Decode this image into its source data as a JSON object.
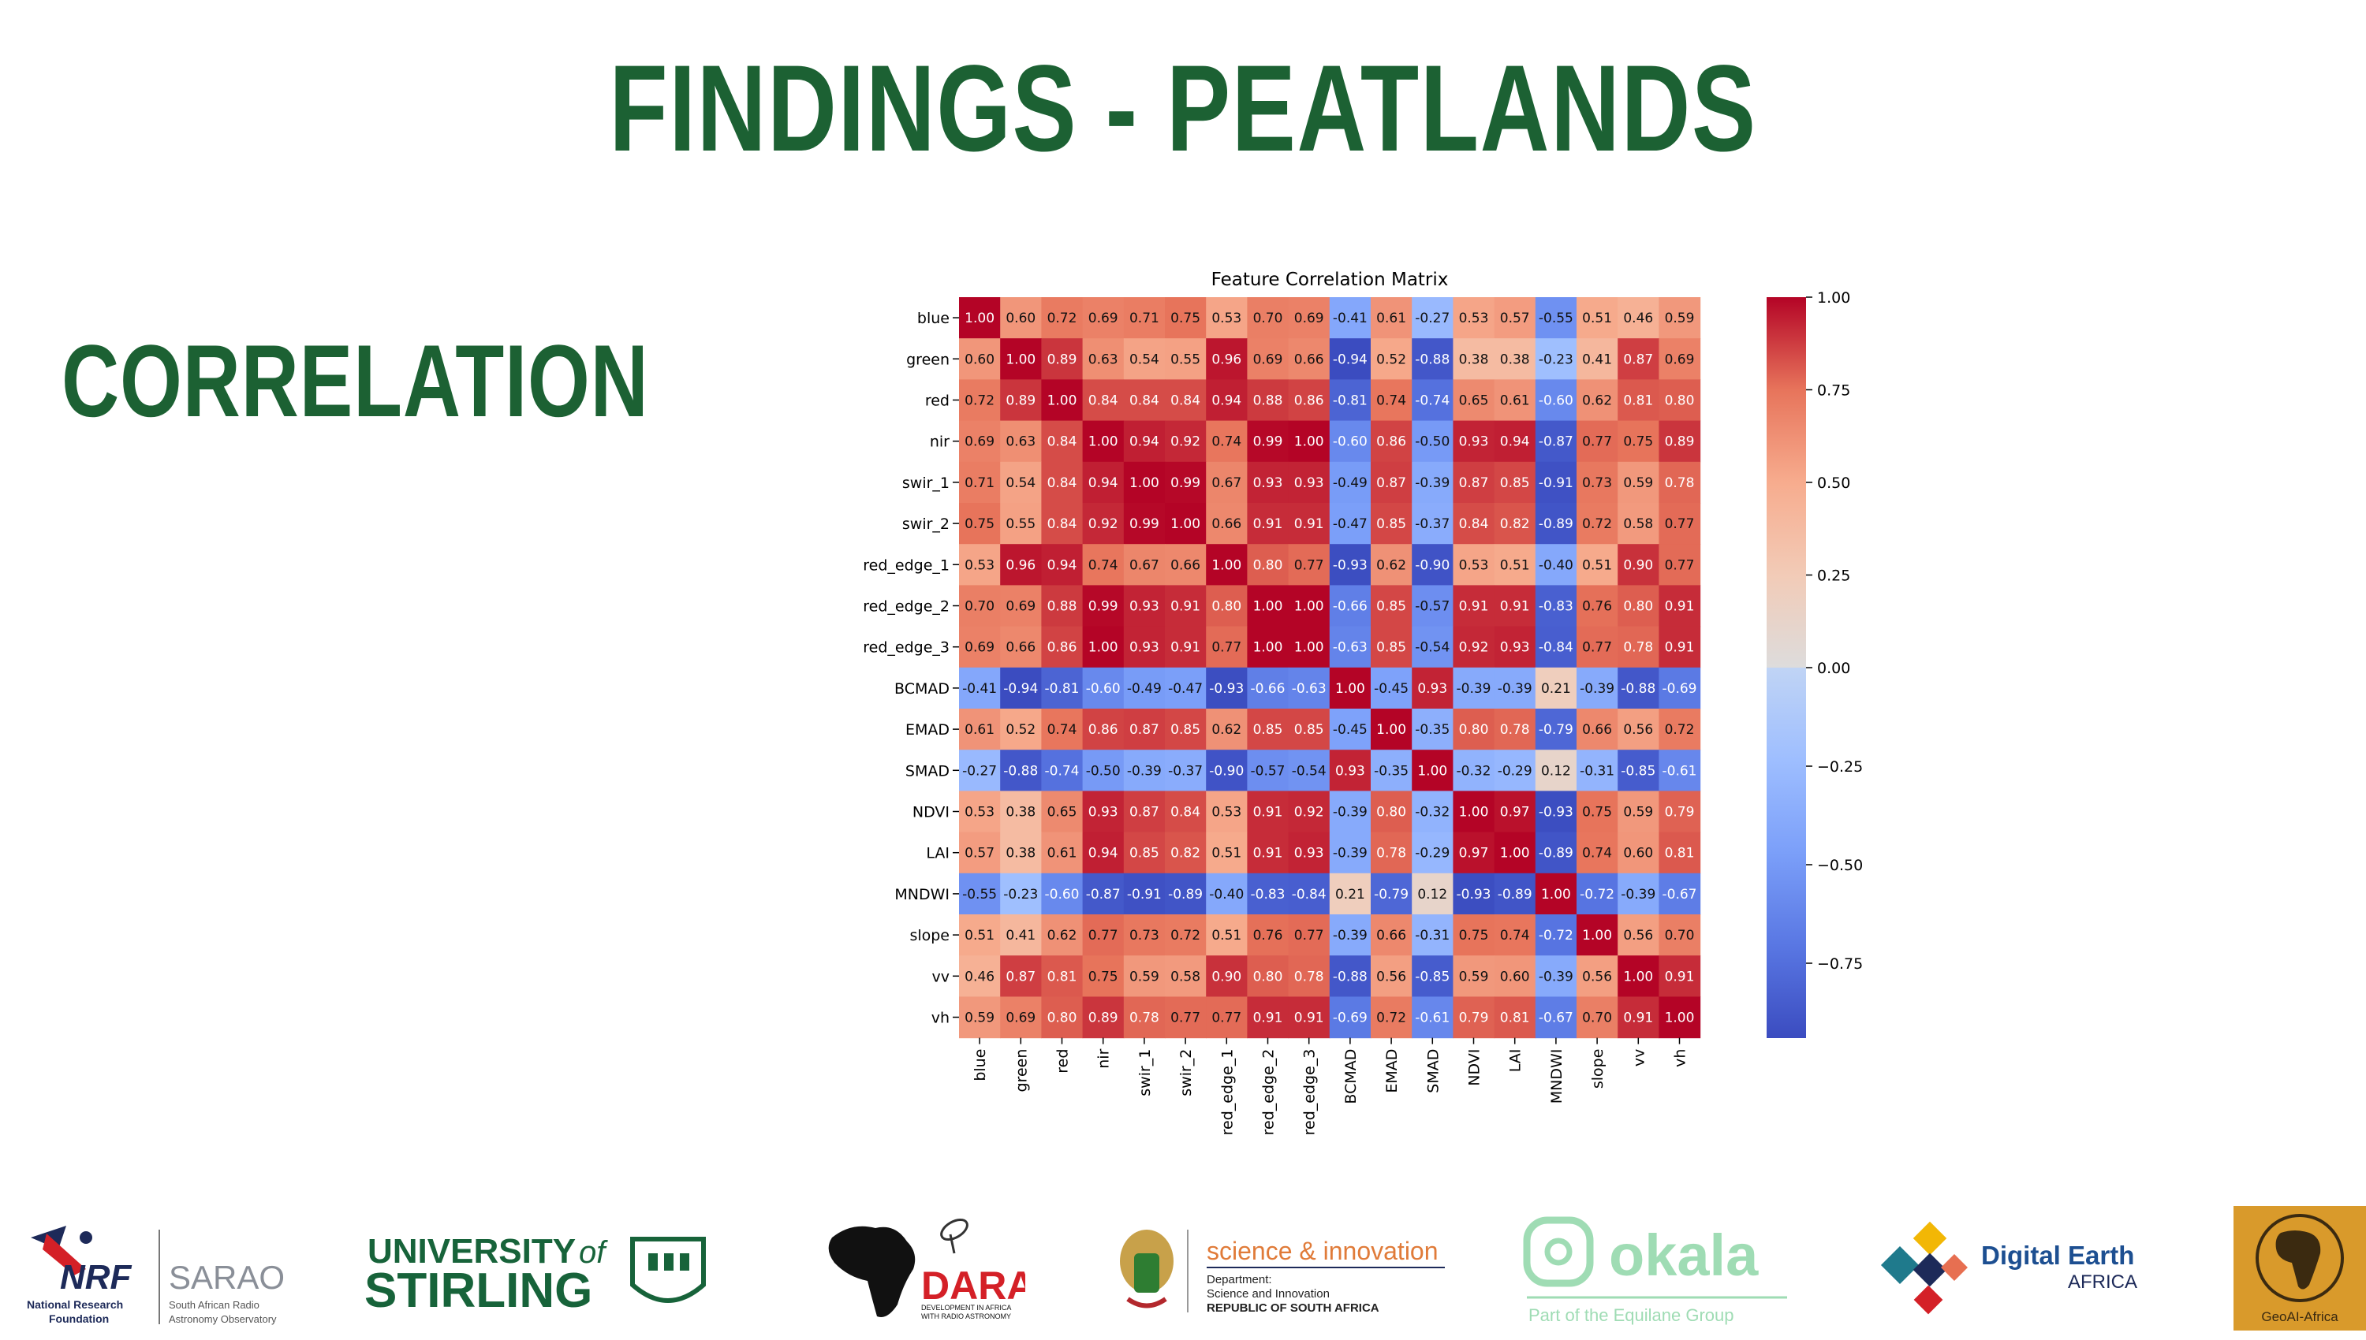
{
  "slide": {
    "title": "FINDINGS - PEATLANDS",
    "section": "CORRELATION"
  },
  "chart_data": {
    "type": "heatmap",
    "title": "Feature Correlation Matrix",
    "labels": [
      "blue",
      "green",
      "red",
      "nir",
      "swir_1",
      "swir_2",
      "red_edge_1",
      "red_edge_2",
      "red_edge_3",
      "BCMAD",
      "EMAD",
      "SMAD",
      "NDVI",
      "LAI",
      "MNDWI",
      "slope",
      "vv",
      "vh"
    ],
    "matrix": [
      [
        1.0,
        0.6,
        0.72,
        0.69,
        0.71,
        0.75,
        0.53,
        0.7,
        0.69,
        -0.41,
        0.61,
        -0.27,
        0.53,
        0.57,
        -0.55,
        0.51,
        0.46,
        0.59
      ],
      [
        0.6,
        1.0,
        0.89,
        0.63,
        0.54,
        0.55,
        0.96,
        0.69,
        0.66,
        -0.94,
        0.52,
        -0.88,
        0.38,
        0.38,
        -0.23,
        0.41,
        0.87,
        0.69
      ],
      [
        0.72,
        0.89,
        1.0,
        0.84,
        0.84,
        0.84,
        0.94,
        0.88,
        0.86,
        -0.81,
        0.74,
        -0.74,
        0.65,
        0.61,
        -0.6,
        0.62,
        0.81,
        0.8
      ],
      [
        0.69,
        0.63,
        0.84,
        1.0,
        0.94,
        0.92,
        0.74,
        0.99,
        1.0,
        -0.6,
        0.86,
        -0.5,
        0.93,
        0.94,
        -0.87,
        0.77,
        0.75,
        0.89
      ],
      [
        0.71,
        0.54,
        0.84,
        0.94,
        1.0,
        0.99,
        0.67,
        0.93,
        0.93,
        -0.49,
        0.87,
        -0.39,
        0.87,
        0.85,
        -0.91,
        0.73,
        0.59,
        0.78
      ],
      [
        0.75,
        0.55,
        0.84,
        0.92,
        0.99,
        1.0,
        0.66,
        0.91,
        0.91,
        -0.47,
        0.85,
        -0.37,
        0.84,
        0.82,
        -0.89,
        0.72,
        0.58,
        0.77
      ],
      [
        0.53,
        0.96,
        0.94,
        0.74,
        0.67,
        0.66,
        1.0,
        0.8,
        0.77,
        -0.93,
        0.62,
        -0.9,
        0.53,
        0.51,
        -0.4,
        0.51,
        0.9,
        0.77
      ],
      [
        0.7,
        0.69,
        0.88,
        0.99,
        0.93,
        0.91,
        0.8,
        1.0,
        1.0,
        -0.66,
        0.85,
        -0.57,
        0.91,
        0.91,
        -0.83,
        0.76,
        0.8,
        0.91
      ],
      [
        0.69,
        0.66,
        0.86,
        1.0,
        0.93,
        0.91,
        0.77,
        1.0,
        1.0,
        -0.63,
        0.85,
        -0.54,
        0.92,
        0.93,
        -0.84,
        0.77,
        0.78,
        0.91
      ],
      [
        -0.41,
        -0.94,
        -0.81,
        -0.6,
        -0.49,
        -0.47,
        -0.93,
        -0.66,
        -0.63,
        1.0,
        -0.45,
        0.93,
        -0.39,
        -0.39,
        0.21,
        -0.39,
        -0.88,
        -0.69
      ],
      [
        0.61,
        0.52,
        0.74,
        0.86,
        0.87,
        0.85,
        0.62,
        0.85,
        0.85,
        -0.45,
        1.0,
        -0.35,
        0.8,
        0.78,
        -0.79,
        0.66,
        0.56,
        0.72
      ],
      [
        -0.27,
        -0.88,
        -0.74,
        -0.5,
        -0.39,
        -0.37,
        -0.9,
        -0.57,
        -0.54,
        0.93,
        -0.35,
        1.0,
        -0.32,
        -0.29,
        0.12,
        -0.31,
        -0.85,
        -0.61
      ],
      [
        0.53,
        0.38,
        0.65,
        0.93,
        0.87,
        0.84,
        0.53,
        0.91,
        0.92,
        -0.39,
        0.8,
        -0.32,
        1.0,
        0.97,
        -0.93,
        0.75,
        0.59,
        0.79
      ],
      [
        0.57,
        0.38,
        0.61,
        0.94,
        0.85,
        0.82,
        0.51,
        0.91,
        0.93,
        -0.39,
        0.78,
        -0.29,
        0.97,
        1.0,
        -0.89,
        0.74,
        0.6,
        0.81
      ],
      [
        -0.55,
        -0.23,
        -0.6,
        -0.87,
        -0.91,
        -0.89,
        -0.4,
        -0.83,
        -0.84,
        0.21,
        -0.79,
        0.12,
        -0.93,
        -0.89,
        1.0,
        -0.72,
        -0.39,
        -0.67
      ],
      [
        0.51,
        0.41,
        0.62,
        0.77,
        0.73,
        0.72,
        0.51,
        0.76,
        0.77,
        -0.39,
        0.66,
        -0.31,
        0.75,
        0.74,
        -0.72,
        1.0,
        0.56,
        0.7
      ],
      [
        0.46,
        0.87,
        0.81,
        0.75,
        0.59,
        0.58,
        0.9,
        0.8,
        0.78,
        -0.88,
        0.56,
        -0.85,
        0.59,
        0.6,
        -0.39,
        0.56,
        1.0,
        0.91
      ],
      [
        0.59,
        0.69,
        0.8,
        0.89,
        0.78,
        0.77,
        0.77,
        0.91,
        0.91,
        -0.69,
        0.72,
        -0.61,
        0.79,
        0.81,
        -0.67,
        0.7,
        0.91,
        1.0
      ]
    ],
    "colorbar": {
      "colormap": "coolwarm",
      "range": [
        -0.94,
        1.0
      ],
      "ticks": [
        1.0,
        0.75,
        0.5,
        0.25,
        0.0,
        -0.25,
        -0.5,
        -0.75
      ],
      "tick_labels": [
        "1.00",
        "0.75",
        "0.50",
        "0.25",
        "0.00",
        "−0.25",
        "−0.50",
        "−0.75"
      ]
    }
  },
  "logos": [
    {
      "name": "nrf-sarao",
      "texts": [
        "NRF",
        "SARAO",
        "National Research",
        "Foundation",
        "South African Radio",
        "Astronomy Observatory"
      ]
    },
    {
      "name": "university-of-stirling",
      "texts": [
        "UNIVERSITY",
        "of",
        "STIRLING"
      ]
    },
    {
      "name": "dara",
      "texts": [
        "DARA",
        "DEVELOPMENT IN AFRICA",
        "WITH RADIO ASTRONOMY"
      ]
    },
    {
      "name": "science-innovation",
      "texts": [
        "science & innovation",
        "Department:",
        "Science and Innovation",
        "REPUBLIC OF SOUTH AFRICA"
      ]
    },
    {
      "name": "okala",
      "texts": [
        "okala",
        "Part of the Equilane Group"
      ]
    },
    {
      "name": "digital-earth-africa",
      "texts": [
        "Digital Earth",
        "AFRICA"
      ]
    },
    {
      "name": "geoai-africa",
      "texts": [
        "GeoAI-Africa"
      ]
    }
  ],
  "colors": {
    "title_green": "#1c6133",
    "logo_navy": "#1d2a59",
    "stirling_green": "#17633a",
    "okala_green": "#9fdcb4",
    "dara_red": "#d42027",
    "geoai_bg": "#d99a2b"
  }
}
